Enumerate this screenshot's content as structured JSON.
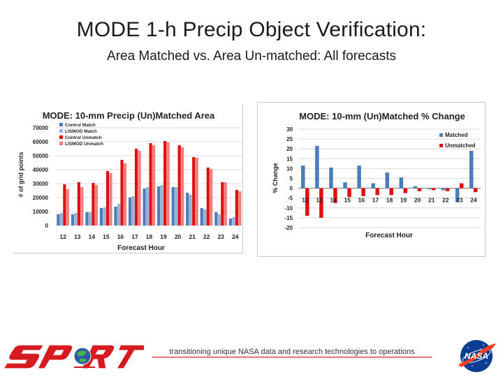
{
  "slide": {
    "title": "MODE 1-h Precip Object Verification:",
    "subtitle": "Area Matched vs. Area Un-matched: All forecasts",
    "footer": "transitioning unique NASA data and research technologies to operations"
  },
  "logos": {
    "left": {
      "icon": "sport-logo",
      "text": "SPoRT"
    },
    "right": {
      "icon": "nasa-meatball-logo",
      "text": "NASA"
    }
  },
  "chart_data": [
    {
      "type": "bar",
      "title": "MODE: 10-mm Precip (Un)Matched Area",
      "xlabel": "Forecast Hour",
      "ylabel": "# of grid points",
      "categories": [
        "12",
        "13",
        "14",
        "15",
        "16",
        "17",
        "18",
        "19",
        "20",
        "21",
        "22",
        "23",
        "24"
      ],
      "ylim": [
        0,
        70000
      ],
      "yticks": [
        "0",
        "10000",
        "20000",
        "30000",
        "40000",
        "50000",
        "60000",
        "70000"
      ],
      "legend": "top-left",
      "grid": true,
      "series": [
        {
          "name": "Control Match",
          "color": "#4a7ebb",
          "values": [
            8000,
            8000,
            9500,
            12500,
            13500,
            20000,
            26500,
            28000,
            27500,
            23500,
            12500,
            9500,
            5000
          ]
        },
        {
          "name": "LISMOD Match",
          "color": "#95b3d7",
          "values": [
            9000,
            9000,
            9500,
            13000,
            15500,
            21000,
            27500,
            29000,
            27500,
            22000,
            11500,
            8000,
            6000
          ]
        },
        {
          "name": "Control Unmatch",
          "color": "#e01010",
          "values": [
            29500,
            31000,
            30500,
            39000,
            47000,
            55000,
            59000,
            60500,
            57500,
            49000,
            41500,
            31000,
            25500
          ]
        },
        {
          "name": "LISMOD Unmatch",
          "color": "#f08080",
          "values": [
            26000,
            27500,
            29000,
            37500,
            44500,
            53500,
            57500,
            59500,
            56000,
            48500,
            40500,
            31000,
            24500
          ]
        }
      ]
    },
    {
      "type": "bar",
      "title": "MODE: 10-mm (Un)Matched % Change",
      "xlabel": "Forecast Hour",
      "ylabel": "% Change",
      "categories": [
        "12",
        "13",
        "14",
        "15",
        "16",
        "17",
        "18",
        "19",
        "20",
        "21",
        "22",
        "23",
        "24"
      ],
      "ylim": [
        -20,
        30
      ],
      "yticks": [
        "30",
        "25",
        "20",
        "15",
        "10",
        "5",
        "0",
        "-5",
        "-10",
        "-15",
        "-20"
      ],
      "legend": "right",
      "grid": true,
      "series": [
        {
          "name": "Matched",
          "color": "#4a7ebb",
          "values": [
            11.5,
            21.5,
            10.5,
            3,
            11.5,
            2.5,
            8,
            5.5,
            1,
            -0.5,
            -1,
            -7,
            19
          ]
        },
        {
          "name": "Unmatched",
          "color": "#e01010",
          "values": [
            -14,
            -15,
            -7.5,
            -4.5,
            -4,
            -3.5,
            -3.5,
            -2.5,
            -1.5,
            -1,
            -1.5,
            2.5,
            -2
          ]
        }
      ]
    }
  ]
}
